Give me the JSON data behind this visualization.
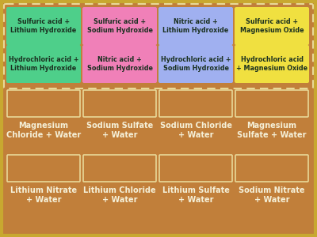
{
  "background_color": "#c17f3a",
  "border_color_outer": "#c8a830",
  "dashed_box_color": "#e8d898",
  "answer_box_color": "#e0c898",
  "card_text_color": "#1a3020",
  "label_text_color": "#f5f0d8",
  "cards_row1": [
    {
      "text": "Sulfuric acid +\nLithium Hydroxide",
      "color": "#4ecf8a"
    },
    {
      "text": "Sulfuric acid +\nSodium Hydroxide",
      "color": "#f080b8"
    },
    {
      "text": "Nitric acid +\nLithium Hydroxide",
      "color": "#a0b0f0"
    },
    {
      "text": "Sulfuric acid +\nMagnesium Oxide",
      "color": "#f0e040"
    }
  ],
  "cards_row2": [
    {
      "text": "Hydrochloric acid +\nLithium Hydroxide",
      "color": "#4ecf8a"
    },
    {
      "text": "Nitric acid +\nSodium Hydroxide",
      "color": "#f080b8"
    },
    {
      "text": "Hydrochloric acid +\nSodium Hydroxide",
      "color": "#a0b0f0"
    },
    {
      "text": "Hydrochloric acid\n+ Magnesium Oxide",
      "color": "#f0e040"
    }
  ],
  "labels_row1": [
    "Magnesium\nChloride + Water",
    "Sodium Sulfate\n+ Water",
    "Sodium Chloride\n+ Water",
    "Magnesium\nSulfate + Water"
  ],
  "labels_row2": [
    "Lithium Nitrate\n+ Water",
    "Lithium Chloride\n+ Water",
    "Lithium Sulfate\n+ Water",
    "Sodium Nitrate\n+ Water"
  ],
  "card_fontsize": 5.8,
  "label_fontsize": 7.0
}
